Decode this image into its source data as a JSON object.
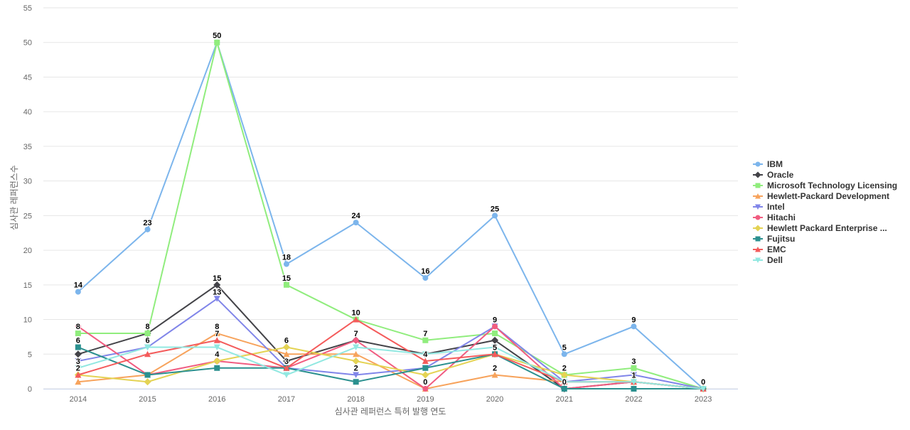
{
  "chart_data": {
    "type": "line",
    "xlabel": "심사관 레퍼런스 특허 발행 연도",
    "ylabel": "심사관 레퍼런스수",
    "x": [
      "2014",
      "2015",
      "2016",
      "2017",
      "2018",
      "2019",
      "2020",
      "2021",
      "2022",
      "2023"
    ],
    "ylim": [
      0,
      55
    ],
    "yticks": [
      0,
      5,
      10,
      15,
      20,
      25,
      30,
      35,
      40,
      45,
      50,
      55
    ],
    "grid": true,
    "legend_position": "right",
    "series": [
      {
        "name": "IBM",
        "color": "#7cb5ec",
        "marker": "circle",
        "values": [
          14,
          23,
          50,
          18,
          24,
          16,
          25,
          5,
          9,
          0
        ],
        "labeled": [
          true,
          true,
          true,
          true,
          true,
          true,
          true,
          true,
          true,
          false
        ]
      },
      {
        "name": "Oracle",
        "color": "#434348",
        "marker": "diamond",
        "values": [
          5,
          8,
          15,
          4,
          7,
          5,
          7,
          0,
          1,
          0
        ],
        "labeled": [
          false,
          false,
          true,
          false,
          true,
          false,
          false,
          true,
          false,
          false
        ]
      },
      {
        "name": "Microsoft Technology Licensing",
        "color": "#90ed7d",
        "marker": "square",
        "values": [
          8,
          8,
          50,
          15,
          10,
          7,
          8,
          2,
          3,
          0
        ],
        "labeled": [
          true,
          true,
          false,
          true,
          false,
          true,
          false,
          true,
          true,
          false
        ]
      },
      {
        "name": "Hewlett-Packard Development",
        "color": "#f7a35c",
        "marker": "triangle",
        "values": [
          1,
          2,
          8,
          5,
          5,
          0,
          2,
          1,
          1,
          0
        ],
        "labeled": [
          false,
          false,
          true,
          false,
          false,
          true,
          true,
          false,
          false,
          false
        ]
      },
      {
        "name": "Intel",
        "color": "#8085e9",
        "marker": "triangle-down",
        "values": [
          4,
          6,
          13,
          3,
          2,
          3,
          9,
          1,
          2,
          0
        ],
        "labeled": [
          false,
          true,
          true,
          false,
          true,
          false,
          true,
          false,
          false,
          false
        ]
      },
      {
        "name": "Hitachi",
        "color": "#f15c80",
        "marker": "circle",
        "values": [
          9,
          2,
          4,
          3,
          7,
          0,
          9,
          0,
          1,
          0
        ],
        "labeled": [
          false,
          false,
          false,
          false,
          false,
          false,
          false,
          false,
          false,
          false
        ]
      },
      {
        "name": "Hewlett Packard Enterprise ...",
        "color": "#e4d354",
        "marker": "diamond",
        "values": [
          2,
          1,
          4,
          6,
          4,
          2,
          5,
          2,
          1,
          0
        ],
        "labeled": [
          false,
          false,
          true,
          true,
          false,
          false,
          false,
          false,
          false,
          false
        ]
      },
      {
        "name": "Fujitsu",
        "color": "#2b908f",
        "marker": "square",
        "values": [
          6,
          2,
          3,
          3,
          1,
          3,
          5,
          0,
          0,
          0
        ],
        "labeled": [
          true,
          false,
          false,
          true,
          false,
          false,
          true,
          false,
          false,
          true
        ]
      },
      {
        "name": "EMC",
        "color": "#f45b5b",
        "marker": "triangle",
        "values": [
          2,
          5,
          7,
          3,
          10,
          4,
          5,
          1,
          1,
          0
        ],
        "labeled": [
          true,
          false,
          true,
          false,
          true,
          true,
          false,
          false,
          true,
          false
        ]
      },
      {
        "name": "Dell",
        "color": "#91e8e1",
        "marker": "triangle-down",
        "values": [
          3,
          6,
          6,
          2,
          6,
          5,
          6,
          1,
          1,
          0
        ],
        "labeled": [
          true,
          false,
          false,
          false,
          false,
          false,
          false,
          false,
          false,
          false
        ]
      }
    ]
  }
}
